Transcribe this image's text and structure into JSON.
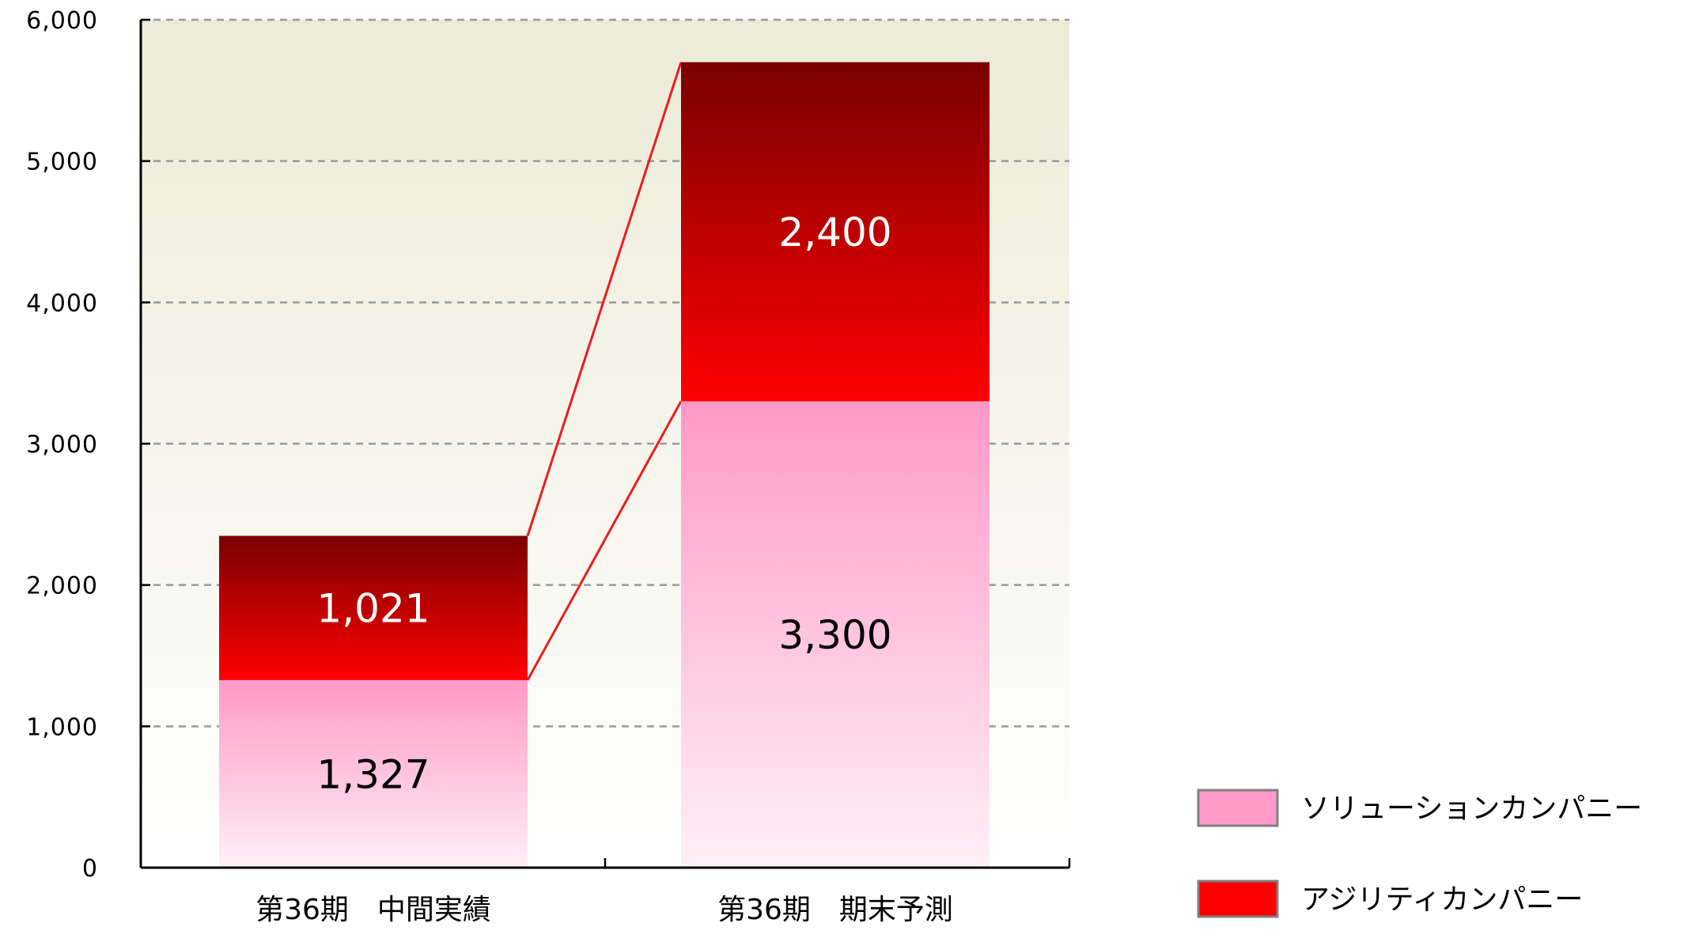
{
  "chart_data": {
    "type": "bar",
    "stacked": true,
    "categories": [
      "第36期　中間実績",
      "第36期　期末予測"
    ],
    "series": [
      {
        "name": "ソリューションカンパニー",
        "values": [
          1327,
          3300
        ],
        "value_labels": [
          "1,327",
          "3,300"
        ],
        "color": "#ff99c8"
      },
      {
        "name": "アジリティカンパニー",
        "values": [
          1021,
          2400
        ],
        "value_labels": [
          "1,021",
          "2,400"
        ],
        "color": "#ff0000"
      }
    ],
    "ylim": [
      0,
      6000
    ],
    "yticks": [
      0,
      1000,
      2000,
      3000,
      4000,
      5000,
      6000
    ],
    "ytick_labels": [
      "0",
      "1,000",
      "2,000",
      "3,000",
      "4,000",
      "5,000",
      "6,000"
    ],
    "grid": true,
    "legend_position": "bottom-right",
    "connector_lines": true,
    "colors": {
      "plot_bg_top": "#ecebd8",
      "plot_bg_bottom": "#ffffff",
      "grid": "#999999",
      "axis": "#000000",
      "connector": "#ee1c1c",
      "red_dark": "#7a0000",
      "pink_light": "#fff0f6",
      "legend_border": "#808080"
    }
  }
}
